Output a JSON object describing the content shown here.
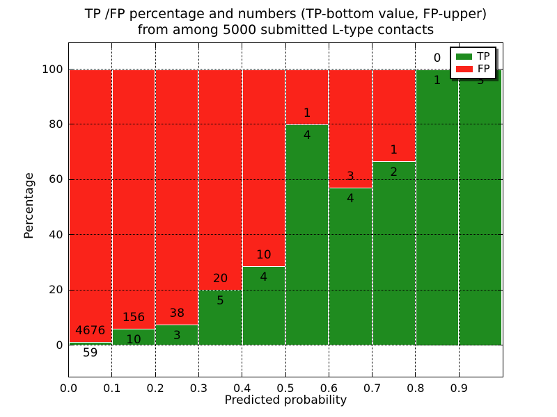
{
  "header": {
    "title_line1": "TP /FP percentage and numbers (TP-bottom value, FP-upper)",
    "title_line2": "from among 5000 submitted L-type contacts"
  },
  "axes": {
    "x_label": "Predicted probability",
    "y_label": "Percentage",
    "x_ticks": [
      "0.0",
      "0.1",
      "0.2",
      "0.3",
      "0.4",
      "0.5",
      "0.6",
      "0.7",
      "0.8",
      "0.9"
    ],
    "y_ticks": [
      "0",
      "20",
      "40",
      "60",
      "80",
      "100"
    ]
  },
  "legend": {
    "entries": [
      {
        "label": "TP",
        "color": "#1f8b1f"
      },
      {
        "label": "FP",
        "color": "#fa231a"
      }
    ]
  },
  "colors": {
    "tp_green": "#1f8b1f",
    "fp_red": "#fa231a",
    "bar_edge": "#ffffff",
    "grid": "#000000",
    "background": "#ffffff"
  },
  "chart_data": {
    "type": "bar",
    "stacked": true,
    "normalized": "percent of bin total",
    "title": "TP /FP percentage and numbers (TP-bottom value, FP-upper) from among 5000 submitted L-type contacts",
    "xlabel": "Predicted probability",
    "ylabel": "Percentage",
    "categories": [
      "0.0-0.1",
      "0.1-0.2",
      "0.2-0.3",
      "0.3-0.4",
      "0.4-0.5",
      "0.5-0.6",
      "0.6-0.7",
      "0.7-0.8",
      "0.8-0.9",
      "0.9-1.0"
    ],
    "x_tick_values": [
      0.0,
      0.1,
      0.2,
      0.3,
      0.4,
      0.5,
      0.6,
      0.7,
      0.8,
      0.9
    ],
    "y_tick_values": [
      0,
      20,
      40,
      60,
      80,
      100
    ],
    "ylim": [
      0,
      100
    ],
    "grid": "dotted, both axes",
    "legend_position": "upper right",
    "series": [
      {
        "name": "TP",
        "color": "#1f8b1f",
        "counts": [
          59,
          10,
          3,
          5,
          4,
          4,
          4,
          2,
          1,
          3
        ],
        "percent": [
          1.25,
          6.02,
          7.32,
          20.0,
          28.57,
          80.0,
          57.14,
          66.67,
          100.0,
          100.0
        ]
      },
      {
        "name": "FP",
        "color": "#fa231a",
        "counts": [
          4676,
          156,
          38,
          20,
          10,
          1,
          3,
          1,
          0,
          0
        ],
        "percent": [
          98.75,
          93.98,
          92.68,
          80.0,
          71.43,
          20.0,
          42.86,
          33.33,
          0.0,
          0.0
        ]
      }
    ],
    "annotation_note": "FP count printed above each TP/FP boundary, TP count printed below it"
  }
}
